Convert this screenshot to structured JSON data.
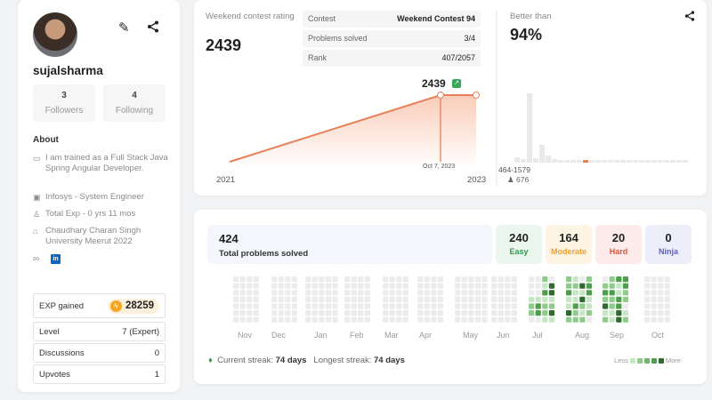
{
  "profile": {
    "username": "sujalsharma",
    "followers": {
      "count": "3",
      "label": "Followers"
    },
    "following": {
      "count": "4",
      "label": "Following"
    },
    "about_heading": "About",
    "about": [
      {
        "icon": "chat-icon",
        "text": "I am trained as a Full Stack Java Spring Angular Developer."
      },
      {
        "icon": "briefcase-icon",
        "text": "Infosys - System Engineer"
      },
      {
        "icon": "person-icon",
        "text": "Total Exp - 0 yrs 11 mos"
      },
      {
        "icon": "graduation-cap-icon",
        "text": "Chaudhary Charan Singh University Meerut 2022"
      }
    ],
    "linkedin_label": "in",
    "exp": {
      "label": "EXP gained",
      "value": "28259"
    },
    "stats": [
      {
        "label": "Level",
        "value": "7 (Expert)"
      },
      {
        "label": "Discussions",
        "value": "0"
      },
      {
        "label": "Upvotes",
        "value": "1"
      }
    ]
  },
  "rating": {
    "title": "Weekend contest rating",
    "value": "2439",
    "contest_table": [
      {
        "key": "Contest",
        "value": "Weekend Contest 94"
      },
      {
        "key": "Problems solved",
        "value": "3/4"
      },
      {
        "key": "Rank",
        "value": "407/2057"
      }
    ],
    "peak_label": "2439",
    "marker_date": "Oct 7, 2023",
    "x_start": "2021",
    "x_end": "2023",
    "better_than_label": "Better than",
    "better_than_value": "94%",
    "range_label": "464-1579",
    "range_count": "676"
  },
  "solved": {
    "total": "424",
    "total_label": "Total problems solved",
    "easy": {
      "count": "240",
      "label": "Easy",
      "color": "#2e9e4a",
      "bg": "#eaf6ee"
    },
    "moderate": {
      "count": "164",
      "label": "Moderate",
      "color": "#f0a030",
      "bg": "#fdf4e3"
    },
    "hard": {
      "count": "20",
      "label": "Hard",
      "color": "#e0533d",
      "bg": "#fcebe9"
    },
    "ninja": {
      "count": "0",
      "label": "Ninja",
      "color": "#5a5fc7",
      "bg": "#eeeefb"
    },
    "months": [
      "Nov",
      "Dec",
      "Jan",
      "Feb",
      "Mar",
      "Apr",
      "May",
      "Jun",
      "Jul",
      "Aug",
      "Sep",
      "Oct"
    ],
    "current_streak_label": "Current streak:",
    "current_streak": "74 days",
    "longest_streak_label": "Longest streak:",
    "longest_streak": "74 days",
    "legend_less": "Less",
    "legend_more": "More"
  },
  "colors": {
    "accent": "#e8805a",
    "heat_levels": [
      "#ececec",
      "#c6e6c4",
      "#8fcb8a",
      "#4f9e4c",
      "#2f6b2f"
    ]
  }
}
